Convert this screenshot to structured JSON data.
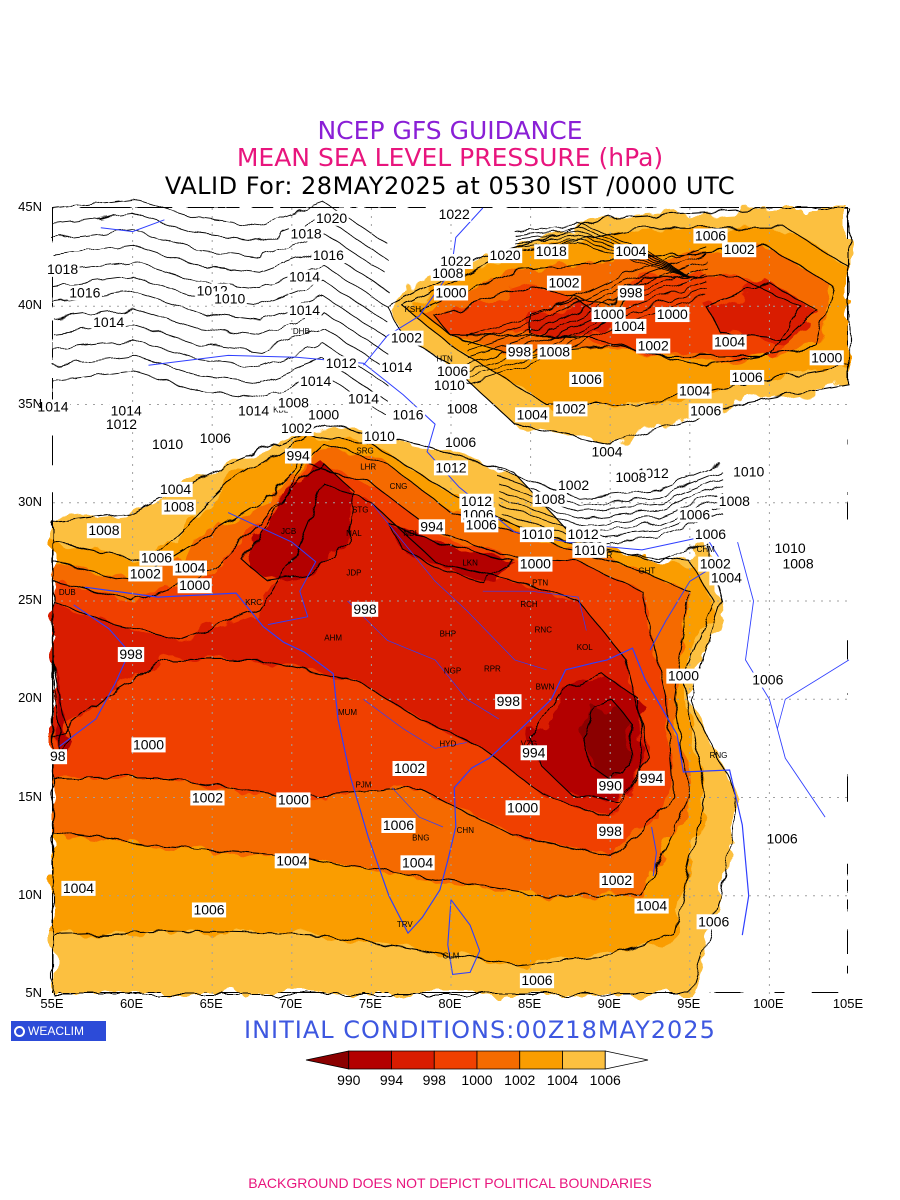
{
  "header": {
    "line1": "NCEP GFS GUIDANCE",
    "line2": "MEAN SEA LEVEL PRESSURE (hPa)",
    "line3": "VALID For: 28MAY2025 at 0530 IST /0000 UTC"
  },
  "axes": {
    "lat_labels": [
      "45N",
      "40N",
      "35N",
      "30N",
      "25N",
      "20N",
      "15N",
      "10N",
      "5N"
    ],
    "lon_labels": [
      "55E",
      "60E",
      "65E",
      "70E",
      "75E",
      "80E",
      "85E",
      "90E",
      "95E",
      "100E",
      "105E"
    ]
  },
  "legend": {
    "labels": [
      "990",
      "994",
      "998",
      "1000",
      "1002",
      "1004",
      "1006"
    ],
    "colors": [
      "#8b0000",
      "#b30000",
      "#d91c00",
      "#f04000",
      "#f56b00",
      "#fa9d00",
      "#fcc040",
      "#ffffff"
    ]
  },
  "colors": {
    "title1": "#8a1fd6",
    "title2": "#e8157d",
    "boundary": "#2f3fff",
    "grid": "#a0a0a0"
  },
  "logo": {
    "text": "WEACLIM",
    "icon": "circle-logo-icon"
  },
  "init_text": "INITIAL CONDITIONS:00Z18MAY2025",
  "footer": "BACKGROUND DOES NOT DEPICT POLITICAL BOUNDARIES",
  "contour_labels": [
    {
      "text": "1020",
      "lon": 72.5,
      "lat": 44.4
    },
    {
      "text": "1022",
      "lon": 80.2,
      "lat": 44.6
    },
    {
      "text": "1018",
      "lon": 70.9,
      "lat": 43.6
    },
    {
      "text": "1016",
      "lon": 72.3,
      "lat": 42.5
    },
    {
      "text": "1022",
      "lon": 80.3,
      "lat": 42.2
    },
    {
      "text": "1020",
      "lon": 83.4,
      "lat": 42.5
    },
    {
      "text": "1018",
      "lon": 86.3,
      "lat": 42.7
    },
    {
      "text": "1004",
      "lon": 91.3,
      "lat": 42.7
    },
    {
      "text": "1006",
      "lon": 96.3,
      "lat": 43.5
    },
    {
      "text": "1002",
      "lon": 98.1,
      "lat": 42.8
    },
    {
      "text": "1018",
      "lon": 55.6,
      "lat": 41.8
    },
    {
      "text": "1014",
      "lon": 70.8,
      "lat": 41.4
    },
    {
      "text": "1008",
      "lon": 79.8,
      "lat": 41.6
    },
    {
      "text": "1002",
      "lon": 87.1,
      "lat": 41.1
    },
    {
      "text": "1016",
      "lon": 57.0,
      "lat": 40.6
    },
    {
      "text": "1012",
      "lon": 65.0,
      "lat": 40.7
    },
    {
      "text": "1010",
      "lon": 66.1,
      "lat": 40.3
    },
    {
      "text": "1000",
      "lon": 80.0,
      "lat": 40.6
    },
    {
      "text": "998",
      "lon": 91.3,
      "lat": 40.6
    },
    {
      "text": "1014",
      "lon": 70.8,
      "lat": 39.7
    },
    {
      "text": "1000",
      "lon": 89.9,
      "lat": 39.5
    },
    {
      "text": "1000",
      "lon": 93.9,
      "lat": 39.5
    },
    {
      "text": "1014",
      "lon": 58.5,
      "lat": 39.1
    },
    {
      "text": "1004",
      "lon": 91.2,
      "lat": 38.9
    },
    {
      "text": "1002",
      "lon": 77.2,
      "lat": 38.3
    },
    {
      "text": "1002",
      "lon": 92.7,
      "lat": 37.9
    },
    {
      "text": "1004",
      "lon": 97.5,
      "lat": 38.1
    },
    {
      "text": "998",
      "lon": 84.3,
      "lat": 37.6
    },
    {
      "text": "1008",
      "lon": 86.5,
      "lat": 37.6
    },
    {
      "text": "1000",
      "lon": 103.6,
      "lat": 37.3
    },
    {
      "text": "1012",
      "lon": 73.1,
      "lat": 37.0
    },
    {
      "text": "1014",
      "lon": 76.6,
      "lat": 36.8
    },
    {
      "text": "1006",
      "lon": 80.1,
      "lat": 36.6
    },
    {
      "text": "1006",
      "lon": 88.5,
      "lat": 36.2
    },
    {
      "text": "1006",
      "lon": 98.6,
      "lat": 36.3
    },
    {
      "text": "1014",
      "lon": 71.5,
      "lat": 36.1
    },
    {
      "text": "1010",
      "lon": 79.9,
      "lat": 35.9
    },
    {
      "text": "1004",
      "lon": 95.3,
      "lat": 35.6
    },
    {
      "text": "1014",
      "lon": 74.5,
      "lat": 35.2
    },
    {
      "text": "1008",
      "lon": 70.1,
      "lat": 35.0
    },
    {
      "text": "1014",
      "lon": 55.0,
      "lat": 34.8
    },
    {
      "text": "1014",
      "lon": 59.6,
      "lat": 34.6
    },
    {
      "text": "1014",
      "lon": 67.6,
      "lat": 34.6
    },
    {
      "text": "1000",
      "lon": 72.0,
      "lat": 34.4
    },
    {
      "text": "1016",
      "lon": 77.3,
      "lat": 34.4
    },
    {
      "text": "1008",
      "lon": 80.7,
      "lat": 34.7
    },
    {
      "text": "1004",
      "lon": 85.1,
      "lat": 34.4
    },
    {
      "text": "1002",
      "lon": 87.5,
      "lat": 34.7
    },
    {
      "text": "1006",
      "lon": 96.0,
      "lat": 34.6
    },
    {
      "text": "1012",
      "lon": 59.3,
      "lat": 33.9
    },
    {
      "text": "1002",
      "lon": 70.3,
      "lat": 33.7
    },
    {
      "text": "1006",
      "lon": 65.2,
      "lat": 33.2
    },
    {
      "text": "1010",
      "lon": 75.5,
      "lat": 33.3
    },
    {
      "text": "1006",
      "lon": 80.6,
      "lat": 33.0
    },
    {
      "text": "1010",
      "lon": 62.2,
      "lat": 32.9
    },
    {
      "text": "994",
      "lon": 70.4,
      "lat": 32.3
    },
    {
      "text": "1004",
      "lon": 89.8,
      "lat": 32.5
    },
    {
      "text": "1012",
      "lon": 80.0,
      "lat": 31.7
    },
    {
      "text": "1012",
      "lon": 92.7,
      "lat": 31.4
    },
    {
      "text": "1010",
      "lon": 98.7,
      "lat": 31.5
    },
    {
      "text": "1008",
      "lon": 91.3,
      "lat": 31.2
    },
    {
      "text": "1004",
      "lon": 62.7,
      "lat": 30.6
    },
    {
      "text": "1002",
      "lon": 87.7,
      "lat": 30.8
    },
    {
      "text": "1008",
      "lon": 62.9,
      "lat": 29.7
    },
    {
      "text": "1012",
      "lon": 81.6,
      "lat": 30.0
    },
    {
      "text": "1008",
      "lon": 86.2,
      "lat": 30.1
    },
    {
      "text": "1008",
      "lon": 97.8,
      "lat": 30.0
    },
    {
      "text": "1006",
      "lon": 81.7,
      "lat": 29.3
    },
    {
      "text": "1006",
      "lon": 95.3,
      "lat": 29.3
    },
    {
      "text": "994",
      "lon": 78.8,
      "lat": 28.7
    },
    {
      "text": "1006",
      "lon": 81.9,
      "lat": 28.8
    },
    {
      "text": "1008",
      "lon": 58.2,
      "lat": 28.5
    },
    {
      "text": "1010",
      "lon": 85.4,
      "lat": 28.3
    },
    {
      "text": "1012",
      "lon": 88.3,
      "lat": 28.3
    },
    {
      "text": "1006",
      "lon": 96.3,
      "lat": 28.3
    },
    {
      "text": "1010",
      "lon": 88.7,
      "lat": 27.5
    },
    {
      "text": "1010",
      "lon": 101.3,
      "lat": 27.6
    },
    {
      "text": "1006",
      "lon": 61.5,
      "lat": 27.1
    },
    {
      "text": "1000",
      "lon": 85.3,
      "lat": 26.8
    },
    {
      "text": "1002",
      "lon": 96.6,
      "lat": 26.8
    },
    {
      "text": "1008",
      "lon": 101.8,
      "lat": 26.8
    },
    {
      "text": "1002",
      "lon": 60.8,
      "lat": 26.3
    },
    {
      "text": "1004",
      "lon": 63.6,
      "lat": 26.6
    },
    {
      "text": "1004",
      "lon": 97.3,
      "lat": 26.1
    },
    {
      "text": "1000",
      "lon": 63.9,
      "lat": 25.7
    },
    {
      "text": "998",
      "lon": 74.6,
      "lat": 24.5
    },
    {
      "text": "998",
      "lon": 59.9,
      "lat": 22.2
    },
    {
      "text": "1000",
      "lon": 94.6,
      "lat": 21.1
    },
    {
      "text": "1006",
      "lon": 99.9,
      "lat": 20.9
    },
    {
      "text": "998",
      "lon": 83.6,
      "lat": 19.8
    },
    {
      "text": "1000",
      "lon": 61.0,
      "lat": 17.6
    },
    {
      "text": "994",
      "lon": 85.2,
      "lat": 17.2
    },
    {
      "text": "98",
      "lon": 55.3,
      "lat": 17.0
    },
    {
      "text": "1002",
      "lon": 77.4,
      "lat": 16.4
    },
    {
      "text": "994",
      "lon": 92.6,
      "lat": 15.9
    },
    {
      "text": "990",
      "lon": 90.0,
      "lat": 15.5
    },
    {
      "text": "1002",
      "lon": 64.7,
      "lat": 14.9
    },
    {
      "text": "1000",
      "lon": 70.1,
      "lat": 14.8
    },
    {
      "text": "1000",
      "lon": 84.5,
      "lat": 14.4
    },
    {
      "text": "1006",
      "lon": 76.7,
      "lat": 13.5
    },
    {
      "text": "998",
      "lon": 90.0,
      "lat": 13.2
    },
    {
      "text": "1006",
      "lon": 100.8,
      "lat": 12.8
    },
    {
      "text": "1004",
      "lon": 70.0,
      "lat": 11.7
    },
    {
      "text": "1004",
      "lon": 77.9,
      "lat": 11.6
    },
    {
      "text": "1002",
      "lon": 90.4,
      "lat": 10.7
    },
    {
      "text": "1004",
      "lon": 56.6,
      "lat": 10.3
    },
    {
      "text": "1004",
      "lon": 92.6,
      "lat": 9.4
    },
    {
      "text": "1006",
      "lon": 64.8,
      "lat": 9.2
    },
    {
      "text": "1006",
      "lon": 96.5,
      "lat": 8.6
    },
    {
      "text": "1006",
      "lon": 85.4,
      "lat": 5.6
    }
  ],
  "cities": [
    {
      "code": "DUB",
      "lon": 55.9,
      "lat": 25.3
    },
    {
      "code": "DHB",
      "lon": 70.6,
      "lat": 38.6
    },
    {
      "code": "KBL",
      "lon": 69.3,
      "lat": 34.6
    },
    {
      "code": "KSH",
      "lon": 77.6,
      "lat": 39.7
    },
    {
      "code": "HTN",
      "lon": 79.6,
      "lat": 37.2
    },
    {
      "code": "SRG",
      "lon": 74.6,
      "lat": 32.5
    },
    {
      "code": "LHR",
      "lon": 74.8,
      "lat": 31.7
    },
    {
      "code": "CNG",
      "lon": 76.7,
      "lat": 30.7
    },
    {
      "code": "STG",
      "lon": 74.3,
      "lat": 29.5
    },
    {
      "code": "JCB",
      "lon": 69.8,
      "lat": 28.4
    },
    {
      "code": "NDL",
      "lon": 77.5,
      "lat": 28.3
    },
    {
      "code": "NAL",
      "lon": 73.9,
      "lat": 28.3
    },
    {
      "code": "JDP",
      "lon": 73.9,
      "lat": 26.3
    },
    {
      "code": "LKN",
      "lon": 81.2,
      "lat": 26.8
    },
    {
      "code": "PTN",
      "lon": 85.6,
      "lat": 25.8
    },
    {
      "code": "KRC",
      "lon": 67.6,
      "lat": 24.8
    },
    {
      "code": "RCH",
      "lon": 84.9,
      "lat": 24.7
    },
    {
      "code": "RNC",
      "lon": 85.8,
      "lat": 23.4
    },
    {
      "code": "BHP",
      "lon": 79.8,
      "lat": 23.2
    },
    {
      "code": "AHM",
      "lon": 72.6,
      "lat": 23.0
    },
    {
      "code": "KOL",
      "lon": 88.4,
      "lat": 22.5
    },
    {
      "code": "NGP",
      "lon": 80.1,
      "lat": 21.3
    },
    {
      "code": "RPR",
      "lon": 82.6,
      "lat": 21.4
    },
    {
      "code": "BWN",
      "lon": 85.9,
      "lat": 20.5
    },
    {
      "code": "MUM",
      "lon": 73.5,
      "lat": 19.2
    },
    {
      "code": "HYD",
      "lon": 79.8,
      "lat": 17.6
    },
    {
      "code": "VZG",
      "lon": 84.9,
      "lat": 17.6
    },
    {
      "code": "RNG",
      "lon": 96.8,
      "lat": 17.0
    },
    {
      "code": "PJM",
      "lon": 74.5,
      "lat": 15.5
    },
    {
      "code": "CHN",
      "lon": 80.9,
      "lat": 13.2
    },
    {
      "code": "BNG",
      "lon": 78.1,
      "lat": 12.8
    },
    {
      "code": "TRV",
      "lon": 77.1,
      "lat": 8.4
    },
    {
      "code": "CLM",
      "lon": 80.0,
      "lat": 6.8
    },
    {
      "code": "GHT",
      "lon": 92.3,
      "lat": 26.4
    },
    {
      "code": "DBR",
      "lon": 89.6,
      "lat": 27.2
    },
    {
      "code": "CHM",
      "lon": 96.0,
      "lat": 27.5
    }
  ]
}
